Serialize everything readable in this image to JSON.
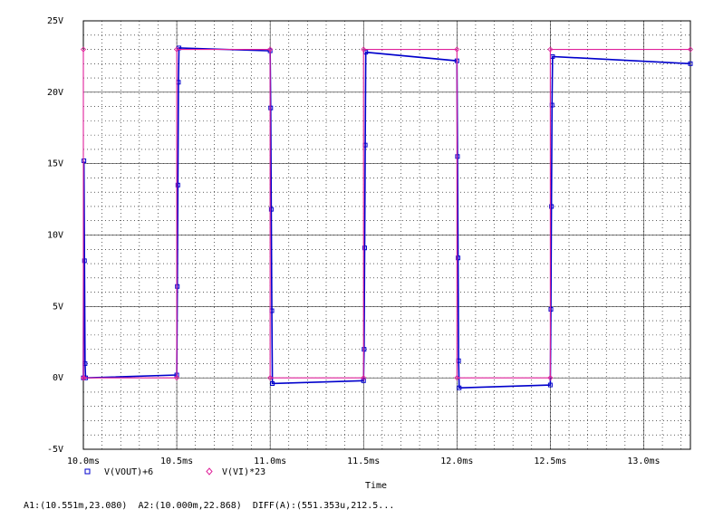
{
  "chart_data": {
    "type": "line",
    "xlabel": "Time",
    "ylabel": "",
    "xlim": [
      10.0,
      13.25
    ],
    "ylim": [
      -5,
      25
    ],
    "x_ticks": [
      10.0,
      10.5,
      11.0,
      11.5,
      12.0,
      12.5,
      13.0
    ],
    "x_tick_labels": [
      "10.0ms",
      "10.5ms",
      "11.0ms",
      "11.5ms",
      "12.0ms",
      "12.5ms",
      "13.0ms"
    ],
    "y_ticks": [
      -5,
      0,
      5,
      10,
      15,
      20,
      25
    ],
    "y_tick_labels": [
      "-5V",
      "0V",
      "5V",
      "10V",
      "15V",
      "20V",
      "25V"
    ],
    "grid": true,
    "legend_position": "bottom-left",
    "series": [
      {
        "name": "V(VOUT)+6",
        "color": "#0000cc",
        "marker": "square",
        "x": [
          10.0,
          10.003,
          10.006,
          10.009,
          10.012,
          10.5,
          10.503,
          10.506,
          10.509,
          10.512,
          11.0,
          11.003,
          11.006,
          11.009,
          11.012,
          11.5,
          11.503,
          11.506,
          11.509,
          11.512,
          12.0,
          12.003,
          12.006,
          12.009,
          12.012,
          12.5,
          12.503,
          12.506,
          12.509,
          12.512,
          13.25
        ],
        "y": [
          0.0,
          15.2,
          8.2,
          1.0,
          0.0,
          0.2,
          6.4,
          13.5,
          20.7,
          23.1,
          22.9,
          18.9,
          11.8,
          4.7,
          -0.4,
          -0.2,
          2.0,
          9.1,
          16.3,
          22.8,
          22.2,
          15.5,
          8.4,
          1.2,
          -0.7,
          -0.5,
          4.8,
          12.0,
          19.1,
          22.5,
          22.0
        ]
      },
      {
        "name": "V(VI)*23",
        "color": "#e0209a",
        "marker": "diamond",
        "x": [
          10.0,
          10.0,
          10.003,
          10.5,
          10.5,
          11.0,
          11.0,
          11.5,
          11.5,
          12.0,
          12.0,
          12.5,
          12.5,
          13.25
        ],
        "y": [
          23.0,
          0.0,
          0.0,
          0.0,
          23.0,
          23.0,
          0.0,
          0.0,
          23.0,
          23.0,
          0.0,
          0.0,
          23.0,
          23.0
        ]
      }
    ]
  },
  "cursor": {
    "a1": "A1:(10.551m,23.080)",
    "a2": "A2:(10.000m,22.868)",
    "diff": "DIFF(A):(551.353u,212.5..."
  }
}
